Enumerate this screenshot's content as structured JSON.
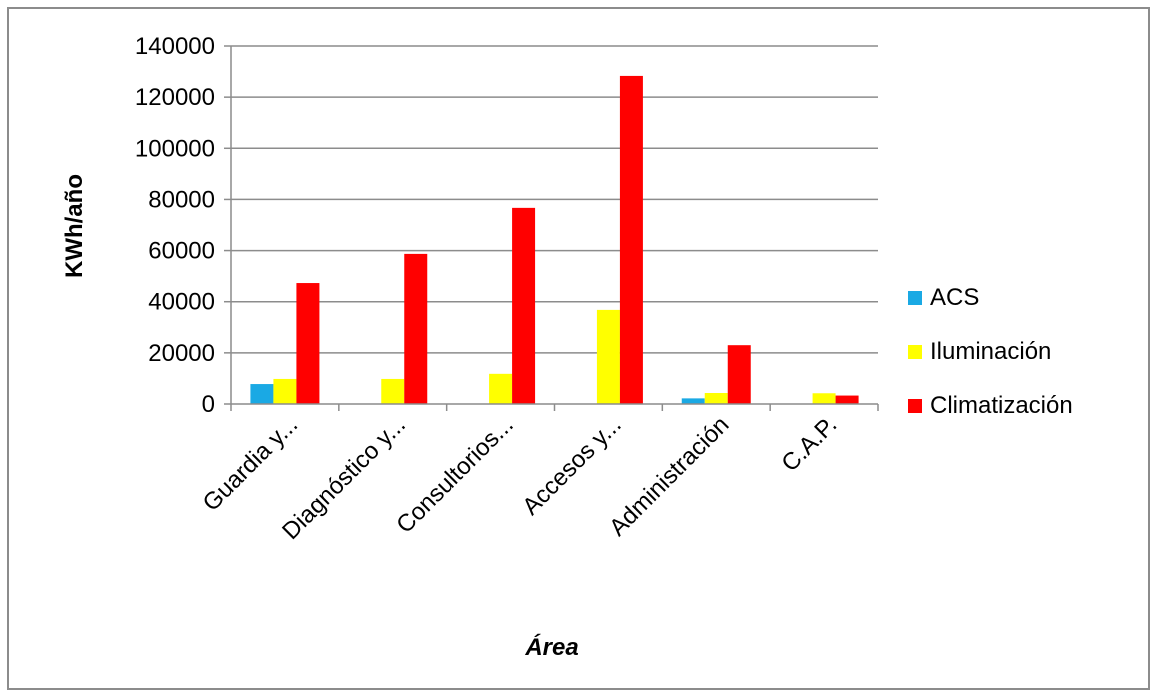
{
  "chart_data": {
    "type": "bar",
    "categories": [
      "Guardia y...",
      "Diagnóstico y...",
      "Consultorios...",
      "Accesos y...",
      "Administración",
      "C.A.P."
    ],
    "series": [
      {
        "name": "ACS",
        "color": "#1aa9e4",
        "values": [
          7800,
          0,
          0,
          0,
          2200,
          0
        ]
      },
      {
        "name": "Iluminación",
        "color": "#ffff00",
        "values": [
          9800,
          9800,
          11800,
          36800,
          4300,
          4200
        ]
      },
      {
        "name": "Climatización",
        "color": "#ff0000",
        "values": [
          47300,
          58700,
          76700,
          128300,
          23000,
          3300
        ]
      }
    ],
    "title": "",
    "xlabel": "Área",
    "ylabel": "KWh/año",
    "ylim": [
      0,
      140000
    ],
    "yticks": [
      "140000",
      "120000",
      "100000",
      "80000",
      "60000",
      "40000",
      "20000",
      "0"
    ],
    "grid": true,
    "legend_position": "right"
  }
}
